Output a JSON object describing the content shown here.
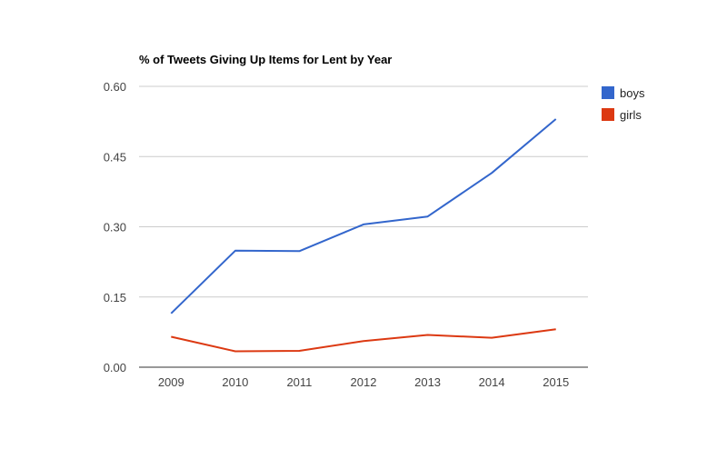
{
  "chart_data": {
    "type": "line",
    "title": "% of Tweets Giving Up Items for Lent by Year",
    "xlabel": "",
    "ylabel": "",
    "categories": [
      "2009",
      "2010",
      "2011",
      "2012",
      "2013",
      "2014",
      "2015"
    ],
    "ylim": [
      0,
      0.6
    ],
    "yticks": [
      "0.00",
      "0.15",
      "0.30",
      "0.45",
      "0.60"
    ],
    "yticks_values": [
      0,
      0.15,
      0.3,
      0.45,
      0.6
    ],
    "grid": true,
    "legend_position": "right",
    "series": [
      {
        "name": "boys",
        "color": "#3366cc",
        "values": [
          0.115,
          0.249,
          0.248,
          0.305,
          0.322,
          0.415,
          0.53
        ]
      },
      {
        "name": "girls",
        "color": "#dc3912",
        "values": [
          0.065,
          0.034,
          0.035,
          0.056,
          0.069,
          0.063,
          0.081
        ]
      }
    ]
  }
}
